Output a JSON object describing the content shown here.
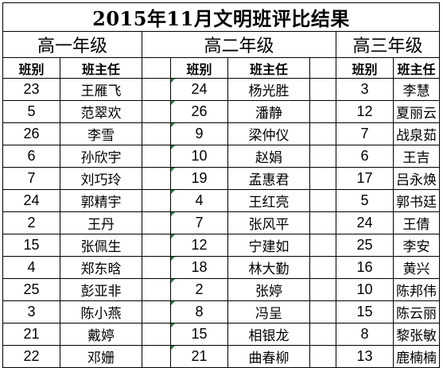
{
  "title": "2015年11月文明班评比结果",
  "headers": {
    "class_label": "班别",
    "teacher_label": "班主任"
  },
  "grades": [
    {
      "name": "高一年级",
      "rows": [
        {
          "cls": "23",
          "teacher": "王雁飞"
        },
        {
          "cls": "5",
          "teacher": "范翠欢"
        },
        {
          "cls": "26",
          "teacher": "李雪"
        },
        {
          "cls": "6",
          "teacher": "孙欣宇"
        },
        {
          "cls": "7",
          "teacher": "刘巧玲"
        },
        {
          "cls": "24",
          "teacher": "郭精宇"
        },
        {
          "cls": "2",
          "teacher": "王丹"
        },
        {
          "cls": "15",
          "teacher": "张佩生"
        },
        {
          "cls": "4",
          "teacher": "郑东晗"
        },
        {
          "cls": "25",
          "teacher": "彭亚非"
        },
        {
          "cls": "3",
          "teacher": "陈小燕"
        },
        {
          "cls": "21",
          "teacher": "戴婷"
        },
        {
          "cls": "22",
          "teacher": "邓姗"
        }
      ]
    },
    {
      "name": "高二年级",
      "rows": [
        {
          "cls": "24",
          "teacher": "杨光胜"
        },
        {
          "cls": "26",
          "teacher": "潘静"
        },
        {
          "cls": "9",
          "teacher": "梁仲仪"
        },
        {
          "cls": "10",
          "teacher": "赵娟"
        },
        {
          "cls": "19",
          "teacher": "孟惠君"
        },
        {
          "cls": "4",
          "teacher": "王红亮"
        },
        {
          "cls": "7",
          "teacher": "张风平"
        },
        {
          "cls": "12",
          "teacher": "宁建如"
        },
        {
          "cls": "18",
          "teacher": "林大勤"
        },
        {
          "cls": "2",
          "teacher": "张婷"
        },
        {
          "cls": "8",
          "teacher": "冯呈"
        },
        {
          "cls": "15",
          "teacher": "相银龙"
        },
        {
          "cls": "21",
          "teacher": "曲春柳"
        }
      ]
    },
    {
      "name": "高三年级",
      "rows": [
        {
          "cls": "3",
          "teacher": "李慧"
        },
        {
          "cls": "12",
          "teacher": "夏丽云"
        },
        {
          "cls": "7",
          "teacher": "战泉茹"
        },
        {
          "cls": "6",
          "teacher": "王吉"
        },
        {
          "cls": "17",
          "teacher": "吕永焕"
        },
        {
          "cls": "5",
          "teacher": "郭书廷"
        },
        {
          "cls": "24",
          "teacher": "王倩"
        },
        {
          "cls": "25",
          "teacher": "李安"
        },
        {
          "cls": "16",
          "teacher": "黄兴"
        },
        {
          "cls": "10",
          "teacher": "陈邦伟"
        },
        {
          "cls": "15",
          "teacher": "陈云丽"
        },
        {
          "cls": "8",
          "teacher": "黎张敏"
        },
        {
          "cls": "13",
          "teacher": "鹿楠楠"
        }
      ]
    }
  ]
}
